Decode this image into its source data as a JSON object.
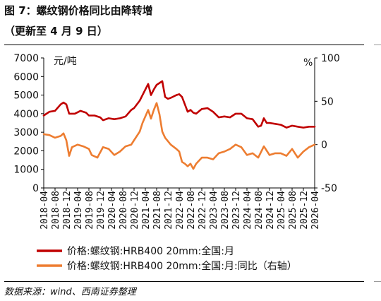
{
  "figure": {
    "title": "图 7：螺纹钢价格同比由降转增",
    "subtitle": "（更新至 4 月 9 日）",
    "source": "数据来源：wind、西南证券整理"
  },
  "chart_data": {
    "type": "line",
    "y_left_unit": "元/吨",
    "y_right_unit": "%",
    "ylim_left": [
      0,
      7000
    ],
    "ylim_right": [
      -50,
      100
    ],
    "y_left_ticks": [
      "0",
      "1000",
      "2000",
      "3000",
      "4000",
      "5000",
      "6000",
      "7000"
    ],
    "y_right_ticks": [
      "-50",
      "0",
      "50",
      "100"
    ],
    "x_range": [
      "2018-04",
      "2026-04"
    ],
    "x_ticks": [
      "2018-04",
      "2018-08",
      "2018-12",
      "2019-04",
      "2019-08",
      "2019-12",
      "2020-04",
      "2020-08",
      "2020-12",
      "2021-04",
      "2021-08",
      "2021-12",
      "2022-04",
      "2022-08",
      "2022-12",
      "2023-04",
      "2023-08",
      "2023-12",
      "2024-04",
      "2024-08",
      "2024-12",
      "2025-04",
      "2025-08",
      "2025-12",
      "2026-04"
    ],
    "grid": false,
    "legend_position": "bottom",
    "series": [
      {
        "name": "价格:螺纹钢:HRB400 20mm:全国:月",
        "axis": "left",
        "color": "#c00000",
        "points": [
          [
            "2018-04",
            3900
          ],
          [
            "2018-06",
            4100
          ],
          [
            "2018-08",
            4150
          ],
          [
            "2018-10",
            4500
          ],
          [
            "2018-11",
            4600
          ],
          [
            "2018-12",
            4500
          ],
          [
            "2019-01",
            4000
          ],
          [
            "2019-03",
            4000
          ],
          [
            "2019-05",
            4150
          ],
          [
            "2019-07",
            4050
          ],
          [
            "2019-08",
            3900
          ],
          [
            "2019-10",
            3900
          ],
          [
            "2019-12",
            3800
          ],
          [
            "2020-01",
            3650
          ],
          [
            "2020-03",
            3750
          ],
          [
            "2020-05",
            3700
          ],
          [
            "2020-07",
            3750
          ],
          [
            "2020-09",
            3850
          ],
          [
            "2020-11",
            4200
          ],
          [
            "2020-12",
            4300
          ],
          [
            "2021-02",
            4700
          ],
          [
            "2021-03",
            5000
          ],
          [
            "2021-05",
            5600
          ],
          [
            "2021-06",
            5000
          ],
          [
            "2021-07",
            5300
          ],
          [
            "2021-08",
            5550
          ],
          [
            "2021-10",
            5750
          ],
          [
            "2021-11",
            4900
          ],
          [
            "2021-12",
            4800
          ],
          [
            "2022-01",
            4850
          ],
          [
            "2022-03",
            5000
          ],
          [
            "2022-04",
            5050
          ],
          [
            "2022-05",
            4900
          ],
          [
            "2022-06",
            4500
          ],
          [
            "2022-07",
            4100
          ],
          [
            "2022-08",
            4200
          ],
          [
            "2022-09",
            4050
          ],
          [
            "2022-10",
            4000
          ],
          [
            "2022-12",
            4250
          ],
          [
            "2023-02",
            4300
          ],
          [
            "2023-04",
            4100
          ],
          [
            "2023-06",
            3800
          ],
          [
            "2023-08",
            3850
          ],
          [
            "2023-10",
            3800
          ],
          [
            "2023-12",
            4000
          ],
          [
            "2024-02",
            4000
          ],
          [
            "2024-04",
            3750
          ],
          [
            "2024-06",
            3700
          ],
          [
            "2024-08",
            3300
          ],
          [
            "2024-09",
            3350
          ],
          [
            "2024-10",
            3750
          ],
          [
            "2024-11",
            3500
          ],
          [
            "2024-12",
            3500
          ],
          [
            "2025-02",
            3450
          ],
          [
            "2025-04",
            3400
          ],
          [
            "2025-06",
            3250
          ],
          [
            "2025-08",
            3350
          ],
          [
            "2025-10",
            3300
          ],
          [
            "2025-12",
            3250
          ],
          [
            "2026-02",
            3300
          ],
          [
            "2026-04",
            3300
          ]
        ]
      },
      {
        "name": "价格:螺纹钢:HRB400 20mm:全国:月:同比（右轴）",
        "axis": "right",
        "color": "#ed7d31",
        "points": [
          [
            "2018-04",
            12
          ],
          [
            "2018-06",
            11
          ],
          [
            "2018-08",
            8
          ],
          [
            "2018-10",
            10
          ],
          [
            "2018-11",
            13
          ],
          [
            "2018-12",
            5
          ],
          [
            "2019-01",
            -13
          ],
          [
            "2019-02",
            -3
          ],
          [
            "2019-04",
            0
          ],
          [
            "2019-06",
            -2
          ],
          [
            "2019-08",
            -5
          ],
          [
            "2019-09",
            -12
          ],
          [
            "2019-11",
            -15
          ],
          [
            "2020-01",
            -3
          ],
          [
            "2020-03",
            -5
          ],
          [
            "2020-05",
            -12
          ],
          [
            "2020-07",
            -8
          ],
          [
            "2020-09",
            -2
          ],
          [
            "2020-11",
            0
          ],
          [
            "2020-12",
            5
          ],
          [
            "2021-02",
            15
          ],
          [
            "2021-03",
            25
          ],
          [
            "2021-05",
            40
          ],
          [
            "2021-06",
            30
          ],
          [
            "2021-07",
            40
          ],
          [
            "2021-08",
            48
          ],
          [
            "2021-09",
            35
          ],
          [
            "2021-10",
            15
          ],
          [
            "2021-11",
            8
          ],
          [
            "2022-01",
            0
          ],
          [
            "2022-03",
            -5
          ],
          [
            "2022-04",
            -8
          ],
          [
            "2022-05",
            -20
          ],
          [
            "2022-06",
            -22
          ],
          [
            "2022-07",
            -25
          ],
          [
            "2022-08",
            -22
          ],
          [
            "2022-09",
            -28
          ],
          [
            "2022-10",
            -22
          ],
          [
            "2022-12",
            -15
          ],
          [
            "2023-02",
            -15
          ],
          [
            "2023-04",
            -17
          ],
          [
            "2023-06",
            -10
          ],
          [
            "2023-08",
            -8
          ],
          [
            "2023-10",
            -5
          ],
          [
            "2023-12",
            0
          ],
          [
            "2024-02",
            -3
          ],
          [
            "2024-04",
            -12
          ],
          [
            "2024-06",
            -10
          ],
          [
            "2024-08",
            -15
          ],
          [
            "2024-10",
            -2
          ],
          [
            "2024-12",
            -12
          ],
          [
            "2025-02",
            -10
          ],
          [
            "2025-04",
            -10
          ],
          [
            "2025-06",
            -13
          ],
          [
            "2025-08",
            -5
          ],
          [
            "2025-10",
            -15
          ],
          [
            "2025-12",
            -8
          ],
          [
            "2026-02",
            -3
          ],
          [
            "2026-04",
            0
          ]
        ]
      }
    ]
  }
}
